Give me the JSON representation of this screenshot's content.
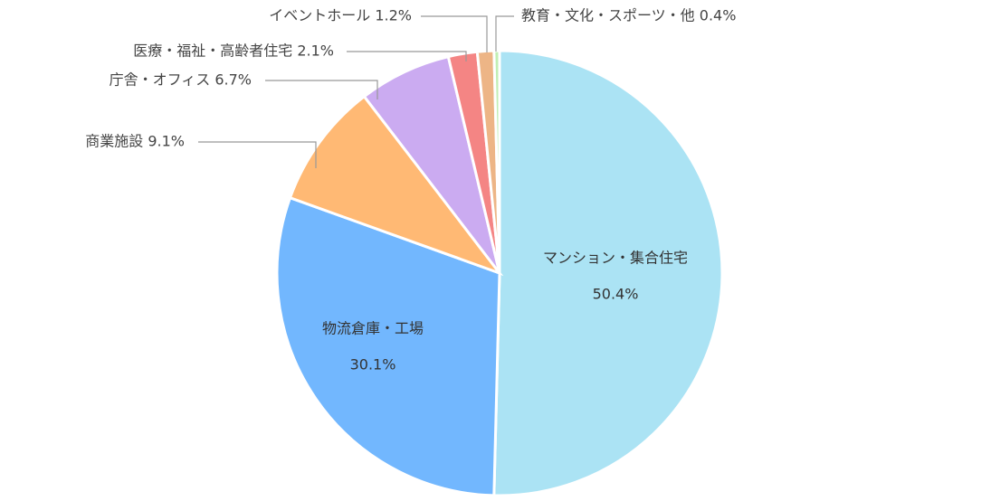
{
  "chart_data": {
    "type": "pie",
    "title": "",
    "start_angle_deg": 0,
    "direction": "clockwise",
    "slices": [
      {
        "label": "マンション・集合住宅",
        "value": 50.4,
        "display": "50.4%",
        "color": "#ABE3F4",
        "label_position": "inside"
      },
      {
        "label": "物流倉庫・工場",
        "value": 30.1,
        "display": "30.1%",
        "color": "#72B7FE",
        "label_position": "inside"
      },
      {
        "label": "商業施設",
        "value": 9.1,
        "display": "9.1%",
        "color": "#FFB974",
        "label_position": "outside"
      },
      {
        "label": "庁舎・オフィス",
        "value": 6.7,
        "display": "6.7%",
        "color": "#CBABF1",
        "label_position": "outside"
      },
      {
        "label": "医療・福祉・高齢者住宅",
        "value": 2.1,
        "display": "2.1%",
        "color": "#F48584",
        "label_position": "outside"
      },
      {
        "label": "イベントホール",
        "value": 1.2,
        "display": "1.2%",
        "color": "#EDB586",
        "label_position": "outside"
      },
      {
        "label": "教育・文化・スポーツ・他",
        "value": 0.4,
        "display": "0.4%",
        "color": "#C2EFB4",
        "label_position": "outside"
      }
    ]
  }
}
